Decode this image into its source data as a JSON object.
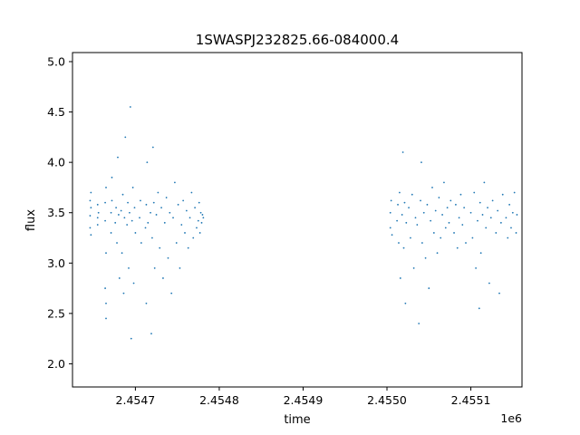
{
  "chart_data": {
    "type": "scatter",
    "title": "1SWASPJ232825.66-084000.4",
    "xlabel": "time",
    "ylabel": "flux",
    "x_offset_text": "1e6",
    "xlim": [
      2454625,
      2455161
    ],
    "ylim": [
      1.77,
      5.09
    ],
    "x_ticks": [
      {
        "value": 2454700,
        "label": "2.4547"
      },
      {
        "value": 2454800,
        "label": "2.4548"
      },
      {
        "value": 2454900,
        "label": "2.4549"
      },
      {
        "value": 2455000,
        "label": "2.4550"
      },
      {
        "value": 2455100,
        "label": "2.4551"
      }
    ],
    "y_ticks": [
      {
        "value": 2.0,
        "label": "2.0"
      },
      {
        "value": 2.5,
        "label": "2.5"
      },
      {
        "value": 3.0,
        "label": "3.0"
      },
      {
        "value": 3.5,
        "label": "3.5"
      },
      {
        "value": 4.0,
        "label": "4.0"
      },
      {
        "value": 4.5,
        "label": "4.5"
      },
      {
        "value": 5.0,
        "label": "5.0"
      }
    ],
    "grid": false,
    "marker_color": "#1f77b4",
    "series": [
      {
        "points": [
          [
            2454646,
            3.47
          ],
          [
            2454646,
            3.62
          ],
          [
            2454646,
            3.35
          ],
          [
            2454647,
            3.55
          ],
          [
            2454647,
            3.28
          ],
          [
            2454647,
            3.7
          ],
          [
            2454655,
            3.45
          ],
          [
            2454655,
            3.58
          ],
          [
            2454655,
            3.38
          ],
          [
            2454656,
            3.5
          ],
          [
            2454664,
            3.42
          ],
          [
            2454664,
            3.6
          ],
          [
            2454664,
            2.75
          ],
          [
            2454665,
            2.6
          ],
          [
            2454665,
            3.1
          ],
          [
            2454665,
            3.75
          ],
          [
            2454665,
            2.45
          ],
          [
            2454671,
            3.5
          ],
          [
            2454671,
            3.3
          ],
          [
            2454672,
            3.62
          ],
          [
            2454672,
            3.85
          ],
          [
            2454676,
            3.4
          ],
          [
            2454677,
            3.55
          ],
          [
            2454678,
            3.2
          ],
          [
            2454679,
            4.05
          ],
          [
            2454680,
            3.48
          ],
          [
            2454681,
            2.85
          ],
          [
            2454683,
            3.52
          ],
          [
            2454684,
            3.1
          ],
          [
            2454685,
            3.68
          ],
          [
            2454686,
            2.7
          ],
          [
            2454687,
            3.45
          ],
          [
            2454688,
            4.25
          ],
          [
            2454690,
            3.38
          ],
          [
            2454691,
            3.6
          ],
          [
            2454692,
            2.95
          ],
          [
            2454693,
            3.5
          ],
          [
            2454694,
            4.55
          ],
          [
            2454695,
            2.25
          ],
          [
            2454696,
            3.42
          ],
          [
            2454697,
            3.75
          ],
          [
            2454698,
            2.8
          ],
          [
            2454699,
            3.55
          ],
          [
            2454700,
            3.3
          ],
          [
            2454705,
            3.45
          ],
          [
            2454706,
            3.62
          ],
          [
            2454707,
            3.2
          ],
          [
            2454712,
            3.35
          ],
          [
            2454713,
            3.58
          ],
          [
            2454713,
            2.6
          ],
          [
            2454714,
            4.0
          ],
          [
            2454715,
            3.4
          ],
          [
            2454718,
            3.5
          ],
          [
            2454719,
            2.3
          ],
          [
            2454720,
            3.25
          ],
          [
            2454721,
            4.15
          ],
          [
            2454722,
            3.6
          ],
          [
            2454723,
            2.95
          ],
          [
            2454725,
            3.48
          ],
          [
            2454727,
            3.7
          ],
          [
            2454729,
            3.15
          ],
          [
            2454731,
            3.55
          ],
          [
            2454733,
            2.85
          ],
          [
            2454735,
            3.4
          ],
          [
            2454737,
            3.65
          ],
          [
            2454739,
            3.05
          ],
          [
            2454741,
            3.5
          ],
          [
            2454743,
            2.7
          ],
          [
            2454745,
            3.45
          ],
          [
            2454747,
            3.8
          ],
          [
            2454749,
            3.2
          ],
          [
            2454751,
            3.58
          ],
          [
            2454753,
            2.95
          ],
          [
            2454755,
            3.38
          ],
          [
            2454757,
            3.62
          ],
          [
            2454759,
            3.3
          ],
          [
            2454761,
            3.52
          ],
          [
            2454763,
            3.15
          ],
          [
            2454765,
            3.45
          ],
          [
            2454767,
            3.7
          ],
          [
            2454769,
            3.25
          ],
          [
            2454771,
            3.55
          ],
          [
            2454773,
            3.35
          ],
          [
            2454775,
            3.42
          ],
          [
            2454776,
            3.6
          ],
          [
            2454777,
            3.3
          ],
          [
            2454778,
            3.5
          ],
          [
            2454779,
            3.4
          ],
          [
            2454780,
            3.48
          ],
          [
            2454781,
            3.45
          ],
          [
            2455004,
            3.5
          ],
          [
            2455004,
            3.35
          ],
          [
            2455005,
            3.62
          ],
          [
            2455006,
            3.28
          ],
          [
            2455012,
            3.42
          ],
          [
            2455013,
            3.58
          ],
          [
            2455014,
            3.2
          ],
          [
            2455015,
            3.7
          ],
          [
            2455016,
            2.85
          ],
          [
            2455018,
            3.48
          ],
          [
            2455019,
            4.1
          ],
          [
            2455020,
            3.15
          ],
          [
            2455021,
            3.6
          ],
          [
            2455022,
            2.6
          ],
          [
            2455023,
            3.4
          ],
          [
            2455026,
            3.55
          ],
          [
            2455028,
            3.25
          ],
          [
            2455030,
            3.68
          ],
          [
            2455032,
            2.95
          ],
          [
            2455034,
            3.45
          ],
          [
            2455036,
            3.38
          ],
          [
            2455038,
            2.4
          ],
          [
            2455040,
            3.62
          ],
          [
            2455041,
            4.0
          ],
          [
            2455042,
            3.2
          ],
          [
            2455044,
            3.5
          ],
          [
            2455046,
            3.05
          ],
          [
            2455048,
            3.58
          ],
          [
            2455050,
            2.75
          ],
          [
            2455052,
            3.42
          ],
          [
            2455054,
            3.75
          ],
          [
            2455056,
            3.3
          ],
          [
            2455058,
            3.52
          ],
          [
            2455060,
            3.1
          ],
          [
            2455062,
            3.65
          ],
          [
            2455064,
            3.25
          ],
          [
            2455066,
            3.48
          ],
          [
            2455068,
            3.8
          ],
          [
            2455070,
            3.35
          ],
          [
            2455072,
            3.55
          ],
          [
            2455074,
            3.4
          ],
          [
            2455076,
            3.62
          ],
          [
            2455080,
            3.3
          ],
          [
            2455082,
            3.58
          ],
          [
            2455084,
            3.15
          ],
          [
            2455086,
            3.45
          ],
          [
            2455088,
            3.68
          ],
          [
            2455090,
            3.38
          ],
          [
            2455092,
            3.55
          ],
          [
            2455094,
            3.2
          ],
          [
            2455100,
            3.5
          ],
          [
            2455102,
            3.25
          ],
          [
            2455104,
            3.7
          ],
          [
            2455106,
            2.95
          ],
          [
            2455108,
            3.42
          ],
          [
            2455110,
            2.55
          ],
          [
            2455111,
            3.6
          ],
          [
            2455112,
            3.1
          ],
          [
            2455114,
            3.48
          ],
          [
            2455116,
            3.8
          ],
          [
            2455118,
            3.35
          ],
          [
            2455120,
            3.55
          ],
          [
            2455122,
            2.8
          ],
          [
            2455124,
            3.45
          ],
          [
            2455126,
            3.62
          ],
          [
            2455130,
            3.3
          ],
          [
            2455132,
            3.52
          ],
          [
            2455134,
            2.7
          ],
          [
            2455136,
            3.4
          ],
          [
            2455138,
            3.68
          ],
          [
            2455142,
            3.45
          ],
          [
            2455144,
            3.25
          ],
          [
            2455146,
            3.58
          ],
          [
            2455148,
            3.35
          ],
          [
            2455150,
            3.5
          ],
          [
            2455152,
            3.7
          ],
          [
            2455154,
            3.3
          ],
          [
            2455155,
            3.48
          ]
        ]
      }
    ]
  }
}
